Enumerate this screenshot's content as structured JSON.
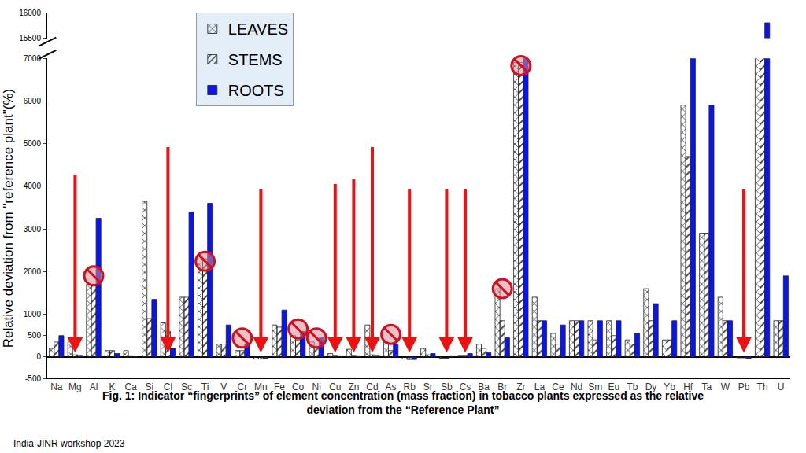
{
  "chart_data": {
    "type": "bar",
    "title": "Fig. 1: Indicator “fingerprints” of element concentration (mass fraction) in tobacco plants expressed as the relative\ndeviation from the “Reference Plant”",
    "y_label": "Relative deviation from \"reference plant\"(%)",
    "categories": [
      "Na",
      "Mg",
      "Al",
      "K",
      "Ca",
      "Si",
      "Cl",
      "Sc",
      "Ti",
      "V",
      "Cr",
      "Mn",
      "Fe",
      "Co",
      "Ni",
      "Cu",
      "Zn",
      "Cd",
      "As",
      "Rb",
      "Sr",
      "Sb",
      "Cs",
      "Ba",
      "Br",
      "Zr",
      "La",
      "Ce",
      "Nd",
      "Sm",
      "Eu",
      "Tb",
      "Dy",
      "Yb",
      "Hf",
      "Ta",
      "W",
      "Pb",
      "Th",
      "U"
    ],
    "series": [
      {
        "name": "LEAVES",
        "color": "#ffff55",
        "marker": "crosshatch",
        "values": [
          200,
          350,
          1700,
          150,
          150,
          3650,
          800,
          1400,
          2200,
          300,
          150,
          -50,
          750,
          500,
          350,
          80,
          180,
          750,
          350,
          -50,
          200,
          -30,
          20,
          300,
          1600,
          6900,
          1400,
          550,
          850,
          850,
          850,
          400,
          1600,
          400,
          5900,
          2900,
          1400,
          -20,
          7800,
          850
        ]
      },
      {
        "name": "STEMS",
        "color": "#33f0f0",
        "marker": "hatch",
        "values": [
          350,
          50,
          1700,
          150,
          10,
          900,
          600,
          1400,
          2300,
          300,
          150,
          -50,
          700,
          400,
          250,
          20,
          20,
          50,
          150,
          -60,
          50,
          -30,
          20,
          200,
          850,
          6900,
          850,
          300,
          850,
          400,
          500,
          300,
          850,
          400,
          4700,
          2900,
          850,
          -20,
          7800,
          850
        ]
      },
      {
        "name": "ROOTS",
        "color": "#0a14f0",
        "marker": "solid",
        "values": [
          500,
          20,
          3250,
          80,
          0,
          1350,
          200,
          3400,
          3600,
          750,
          300,
          -30,
          1100,
          600,
          450,
          10,
          10,
          20,
          300,
          -60,
          80,
          10,
          80,
          100,
          450,
          7900,
          850,
          750,
          850,
          850,
          850,
          550,
          1250,
          850,
          7800,
          5900,
          850,
          -30,
          15800,
          1900
        ]
      }
    ],
    "ylim": [
      -500,
      16000
    ],
    "yticks": [
      -500,
      0,
      500,
      1000,
      2000,
      3000,
      4000,
      5000,
      6000,
      7000,
      15500,
      16000
    ],
    "grid": false,
    "legend": "top left",
    "annotations": [
      {
        "text": "India-JINR workshop 2023"
      }
    ]
  }
}
